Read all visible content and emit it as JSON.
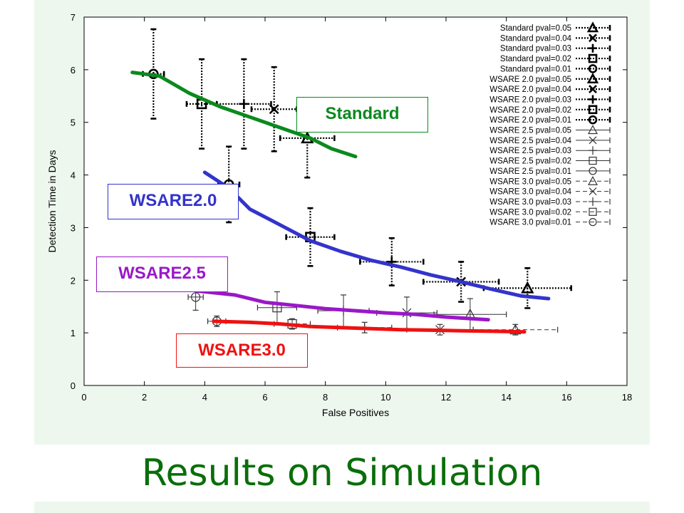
{
  "slide": {
    "title": "Results on Simulation",
    "title_color": "#0a6e0a",
    "panel_color": "#eef7ee"
  },
  "callouts": [
    {
      "id": "standard",
      "label": "Standard",
      "color": "#0a8a1e"
    },
    {
      "id": "wsare20",
      "label": "WSARE2.0",
      "color": "#3333cc"
    },
    {
      "id": "wsare25",
      "label": "WSARE2.5",
      "color": "#9a18c8"
    },
    {
      "id": "wsare30",
      "label": "WSARE3.0",
      "color": "#ee1111"
    }
  ],
  "chart_data": {
    "type": "scatter",
    "title": "",
    "xlabel": "False Positives",
    "ylabel": "Detection Time in Days",
    "xlim": [
      0,
      18
    ],
    "ylim": [
      0,
      7
    ],
    "xticks": [
      "0",
      "2",
      "4",
      "6",
      "8",
      "10",
      "12",
      "14",
      "16",
      "18"
    ],
    "yticks": [
      "0",
      "1",
      "2",
      "3",
      "4",
      "5",
      "6",
      "7"
    ],
    "legend_position": "top-right",
    "series": [
      {
        "name": "Standard pval=0.05",
        "marker": "triangle",
        "style": "dotted",
        "points": [
          {
            "x": 7.4,
            "y": 4.7,
            "xerr": 0.9,
            "yerr": 0.75
          }
        ]
      },
      {
        "name": "Standard pval=0.04",
        "marker": "x",
        "style": "dotted",
        "points": [
          {
            "x": 6.3,
            "y": 5.25,
            "xerr": 0.75,
            "yerr": 0.8
          }
        ]
      },
      {
        "name": "Standard pval=0.03",
        "marker": "plus",
        "style": "dotted",
        "points": [
          {
            "x": 5.3,
            "y": 5.35,
            "xerr": 0.9,
            "yerr": 0.85
          }
        ]
      },
      {
        "name": "Standard pval=0.02",
        "marker": "square",
        "style": "dotted",
        "points": [
          {
            "x": 3.9,
            "y": 5.35,
            "xerr": 0.5,
            "yerr": 0.85
          }
        ]
      },
      {
        "name": "Standard pval=0.01",
        "marker": "circle",
        "style": "dotted",
        "points": [
          {
            "x": 2.3,
            "y": 5.92,
            "xerr": 0.35,
            "yerr": 0.85
          }
        ]
      },
      {
        "name": "WSARE 2.0 pval=0.05",
        "marker": "triangle",
        "style": "dotted",
        "points": [
          {
            "x": 14.7,
            "y": 1.85,
            "xerr": 1.45,
            "yerr": 0.38
          }
        ]
      },
      {
        "name": "WSARE 2.0 pval=0.04",
        "marker": "x",
        "style": "dotted",
        "points": [
          {
            "x": 12.5,
            "y": 1.97,
            "xerr": 1.25,
            "yerr": 0.38
          }
        ]
      },
      {
        "name": "WSARE 2.0 pval=0.03",
        "marker": "plus",
        "style": "dotted",
        "points": [
          {
            "x": 10.2,
            "y": 2.35,
            "xerr": 1.05,
            "yerr": 0.45
          }
        ]
      },
      {
        "name": "WSARE 2.0 pval=0.02",
        "marker": "square",
        "style": "dotted",
        "points": [
          {
            "x": 7.5,
            "y": 2.82,
            "xerr": 0.8,
            "yerr": 0.55
          }
        ]
      },
      {
        "name": "WSARE 2.0 pval=0.01",
        "marker": "circle",
        "style": "dotted",
        "points": [
          {
            "x": 4.8,
            "y": 3.82,
            "xerr": 0.35,
            "yerr": 0.72
          }
        ]
      },
      {
        "name": "WSARE 2.5 pval=0.05",
        "marker": "triangle",
        "style": "thin",
        "points": [
          {
            "x": 12.8,
            "y": 1.35,
            "xerr": 1.2,
            "yerr": 0.3
          }
        ]
      },
      {
        "name": "WSARE 2.5 pval=0.04",
        "marker": "x",
        "style": "thin",
        "points": [
          {
            "x": 10.7,
            "y": 1.38,
            "xerr": 1.0,
            "yerr": 0.3
          }
        ]
      },
      {
        "name": "WSARE 2.5 pval=0.03",
        "marker": "plus",
        "style": "thin",
        "points": [
          {
            "x": 8.6,
            "y": 1.42,
            "xerr": 0.85,
            "yerr": 0.3
          }
        ]
      },
      {
        "name": "WSARE 2.5 pval=0.02",
        "marker": "square",
        "style": "thin",
        "points": [
          {
            "x": 6.4,
            "y": 1.48,
            "xerr": 0.65,
            "yerr": 0.3
          }
        ]
      },
      {
        "name": "WSARE 2.5 pval=0.01",
        "marker": "circle",
        "style": "thin",
        "points": [
          {
            "x": 3.7,
            "y": 1.68,
            "xerr": 0.25,
            "yerr": 0.25
          }
        ]
      },
      {
        "name": "WSARE 3.0 pval=0.05",
        "marker": "triangle",
        "style": "dashed",
        "points": [
          {
            "x": 14.3,
            "y": 1.06,
            "xerr": 1.4,
            "yerr": 0.1
          }
        ]
      },
      {
        "name": "WSARE 3.0 pval=0.04",
        "marker": "x",
        "style": "dashed",
        "points": [
          {
            "x": 11.8,
            "y": 1.06,
            "xerr": 1.1,
            "yerr": 0.1
          }
        ]
      },
      {
        "name": "WSARE 3.0 pval=0.03",
        "marker": "plus",
        "style": "dashed",
        "points": [
          {
            "x": 9.3,
            "y": 1.1,
            "xerr": 0.9,
            "yerr": 0.1
          }
        ]
      },
      {
        "name": "WSARE 3.0 pval=0.02",
        "marker": "square",
        "style": "dashed",
        "points": [
          {
            "x": 6.9,
            "y": 1.17,
            "xerr": 0.6,
            "yerr": 0.1
          }
        ]
      },
      {
        "name": "WSARE 3.0 pval=0.01",
        "marker": "circle",
        "style": "dashed",
        "points": [
          {
            "x": 4.4,
            "y": 1.22,
            "xerr": 0.3,
            "yerr": 0.1
          }
        ]
      }
    ],
    "trend_lines": [
      {
        "label": "Standard",
        "color": "#0a8a1e",
        "points": [
          [
            1.6,
            5.95
          ],
          [
            2.5,
            5.88
          ],
          [
            3.5,
            5.55
          ],
          [
            4.5,
            5.3
          ],
          [
            5.5,
            5.1
          ],
          [
            6.5,
            4.9
          ],
          [
            7.5,
            4.7
          ],
          [
            8.2,
            4.5
          ],
          [
            9.0,
            4.35
          ]
        ]
      },
      {
        "label": "WSARE2.0",
        "color": "#3333cc",
        "points": [
          [
            4.0,
            4.05
          ],
          [
            4.8,
            3.75
          ],
          [
            5.5,
            3.35
          ],
          [
            6.5,
            3.05
          ],
          [
            7.5,
            2.75
          ],
          [
            8.5,
            2.55
          ],
          [
            9.5,
            2.38
          ],
          [
            10.5,
            2.25
          ],
          [
            11.5,
            2.1
          ],
          [
            12.5,
            1.97
          ],
          [
            13.5,
            1.83
          ],
          [
            14.5,
            1.7
          ],
          [
            15.4,
            1.65
          ]
        ]
      },
      {
        "label": "WSARE2.5",
        "color": "#9a18c8",
        "points": [
          [
            3.7,
            1.8
          ],
          [
            5.0,
            1.72
          ],
          [
            6.0,
            1.58
          ],
          [
            7.0,
            1.52
          ],
          [
            8.0,
            1.46
          ],
          [
            9.0,
            1.42
          ],
          [
            10.0,
            1.38
          ],
          [
            11.0,
            1.35
          ],
          [
            12.0,
            1.3
          ],
          [
            13.4,
            1.25
          ]
        ]
      },
      {
        "label": "WSARE3.0",
        "color": "#ee1111",
        "points": [
          [
            4.3,
            1.22
          ],
          [
            5.5,
            1.2
          ],
          [
            6.5,
            1.17
          ],
          [
            7.5,
            1.12
          ],
          [
            8.5,
            1.1
          ],
          [
            9.5,
            1.08
          ],
          [
            10.5,
            1.06
          ],
          [
            11.5,
            1.05
          ],
          [
            12.5,
            1.04
          ],
          [
            13.5,
            1.03
          ],
          [
            14.6,
            1.02
          ]
        ]
      }
    ]
  }
}
